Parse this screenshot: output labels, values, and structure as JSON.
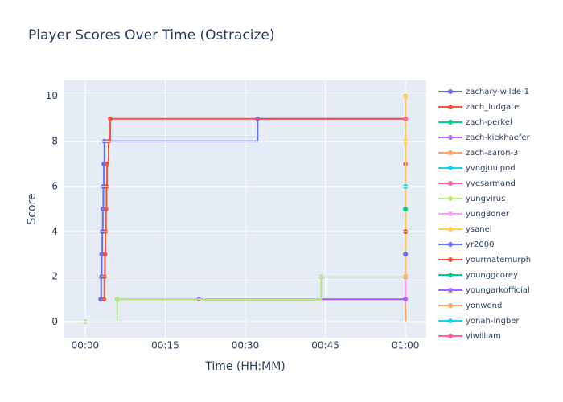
{
  "chart_data": {
    "type": "line",
    "line_shape": "hv",
    "title": "Player Scores Over Time (Ostracize)",
    "x_label": "Time (HH:MM)",
    "y_label": "Score",
    "xlim": [
      -3.9,
      63.9
    ],
    "xticks": [
      {
        "value": 0,
        "label": "00:00"
      },
      {
        "value": 15,
        "label": "00:15"
      },
      {
        "value": 30,
        "label": "00:30"
      },
      {
        "value": 45,
        "label": "00:45"
      },
      {
        "value": 60,
        "label": "01:00"
      }
    ],
    "ylim": [
      -0.7,
      10.7
    ],
    "yticks": [
      0,
      2,
      4,
      6,
      8,
      10
    ],
    "grid": true,
    "series": [
      {
        "name": "zachary-wilde-1",
        "color": "#636efa",
        "x": [
          2.9,
          3.0,
          3.1,
          3.2,
          3.3,
          3.4,
          3.5,
          3.6,
          32.3,
          60
        ],
        "values": [
          1,
          2,
          3,
          4,
          5,
          6,
          7,
          8,
          9,
          9
        ]
      },
      {
        "name": "zach_ludgate",
        "color": "#EF553B",
        "x": [
          3.5,
          3.6,
          3.7,
          3.8,
          3.9,
          4.0,
          4.1,
          4.4,
          4.7,
          60
        ],
        "values": [
          1,
          2,
          3,
          4,
          5,
          6,
          7,
          8,
          9,
          9
        ]
      },
      {
        "name": "zach-perkel",
        "color": "#00cc96",
        "x": [
          6.0,
          60
        ],
        "values": [
          1,
          5
        ]
      },
      {
        "name": "zach-kiekhaefer",
        "color": "#ab63fa",
        "x": [
          21.3,
          60
        ],
        "values": [
          1,
          1
        ]
      },
      {
        "name": "zach-aaron-3",
        "color": "#FFA15A",
        "x": [
          0,
          60
        ],
        "values": [
          0,
          10
        ]
      },
      {
        "name": "yvngjuulpod",
        "color": "#19d3f3",
        "x": [
          60
        ],
        "values": [
          5
        ]
      },
      {
        "name": "yvesarmand",
        "color": "#FF6692",
        "x": [
          60,
          60
        ],
        "values": [
          1,
          7
        ]
      },
      {
        "name": "yungvirus",
        "color": "#B6E880",
        "x": [
          0,
          6.0,
          44.2,
          60
        ],
        "values": [
          0,
          1,
          2,
          2
        ]
      },
      {
        "name": "yung8oner",
        "color": "#FF97FF",
        "x": [
          60,
          60
        ],
        "values": [
          1,
          3
        ]
      },
      {
        "name": "ysanel",
        "color": "#FECB52",
        "x": [
          60,
          60,
          60,
          60
        ],
        "values": [
          2,
          6,
          8,
          10
        ]
      },
      {
        "name": "yr2000",
        "color": "#636efa",
        "x": [
          60
        ],
        "values": [
          3
        ]
      },
      {
        "name": "yourmatemurph",
        "color": "#EF553B",
        "x": [
          60
        ],
        "values": [
          4
        ]
      },
      {
        "name": "younggcorey",
        "color": "#00cc96",
        "x": [
          60
        ],
        "values": [
          5
        ]
      },
      {
        "name": "youngarkofficial",
        "color": "#ab63fa",
        "x": [
          60
        ],
        "values": [
          1
        ]
      },
      {
        "name": "yonwond",
        "color": "#FFA15A",
        "x": [
          60
        ],
        "values": [
          2
        ]
      },
      {
        "name": "yonah-ingber",
        "color": "#19d3f3",
        "x": [
          60
        ],
        "values": [
          6
        ]
      },
      {
        "name": "yiwilliam",
        "color": "#FF6692",
        "x": [
          60
        ],
        "values": [
          9
        ]
      }
    ]
  }
}
